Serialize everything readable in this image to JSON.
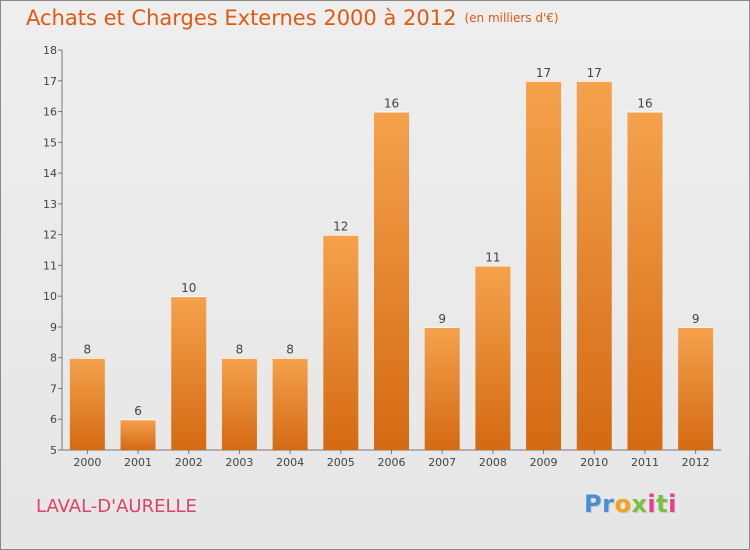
{
  "header": {
    "title": "Achats et Charges Externes 2000 à 2012",
    "unit": "(en milliers d'€)"
  },
  "commune": "LAVAL-D'AURELLE",
  "logo": {
    "text": "Proxiti",
    "letter_colors": [
      "#4a8fd4",
      "#4a8fd4",
      "#f3a21f",
      "#7ac143",
      "#e63d8d",
      "#7ac143",
      "#e63d8d"
    ]
  },
  "colors": {
    "bar_light": "#f5a24d",
    "bar_dark": "#d46a12",
    "title": "#e05a12",
    "commune": "#e0406a"
  },
  "chart_data": {
    "type": "bar",
    "title": "Achats et Charges Externes 2000 à 2012",
    "xlabel": "",
    "ylabel": "",
    "categories": [
      "2000",
      "2001",
      "2002",
      "2003",
      "2004",
      "2005",
      "2006",
      "2007",
      "2008",
      "2009",
      "2010",
      "2011",
      "2012"
    ],
    "values": [
      8,
      6,
      10,
      8,
      8,
      12,
      16,
      9,
      11,
      17,
      17,
      16,
      9
    ],
    "ylim": [
      5,
      18
    ],
    "yticks": [
      5,
      6,
      7,
      8,
      9,
      10,
      11,
      12,
      13,
      14,
      15,
      16,
      17,
      18
    ],
    "grid": false,
    "legend": "none"
  }
}
